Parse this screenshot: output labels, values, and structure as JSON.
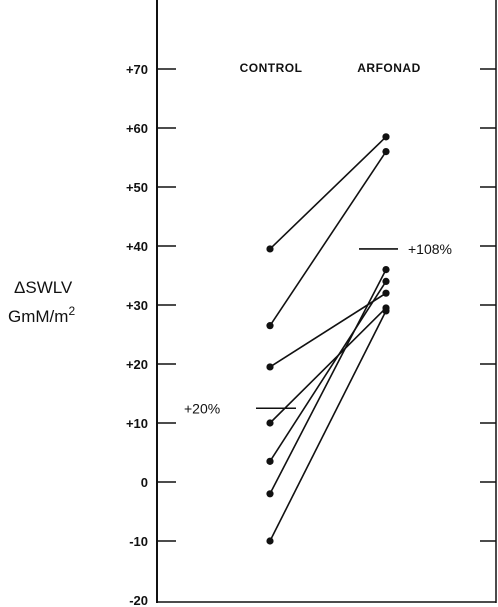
{
  "chart_data": {
    "type": "line",
    "title": "",
    "categories": [
      "CONTROL",
      "ARFONAD"
    ],
    "ylabel_lines": [
      "ΔSWLV",
      "GmM/m"
    ],
    "ylabel_superscript": "2",
    "ylim": [
      -20,
      80
    ],
    "yticks": [
      {
        "value": 70,
        "label": "+70"
      },
      {
        "value": 60,
        "label": "+60"
      },
      {
        "value": 50,
        "label": "+50"
      },
      {
        "value": 40,
        "label": "+40"
      },
      {
        "value": 30,
        "label": "+30"
      },
      {
        "value": 20,
        "label": "+20"
      },
      {
        "value": 10,
        "label": "+10"
      },
      {
        "value": 0,
        "label": "0"
      },
      {
        "value": -10,
        "label": "-10"
      },
      {
        "value": -20,
        "label": "-20"
      }
    ],
    "series": [
      {
        "values": [
          39.5,
          58.5
        ]
      },
      {
        "values": [
          26.5,
          56
        ]
      },
      {
        "values": [
          19.5,
          32
        ]
      },
      {
        "values": [
          10,
          29.5
        ]
      },
      {
        "values": [
          3.5,
          34
        ]
      },
      {
        "values": [
          -2,
          36
        ]
      },
      {
        "values": [
          -10,
          29
        ]
      }
    ],
    "annotations": [
      {
        "label": "+20%",
        "value": 12.5,
        "group": "CONTROL"
      },
      {
        "label": "+108%",
        "value": 39.5,
        "group": "ARFONAD"
      }
    ],
    "grid": false,
    "colors": {
      "ink": "#111111",
      "background": "#ffffff"
    }
  }
}
